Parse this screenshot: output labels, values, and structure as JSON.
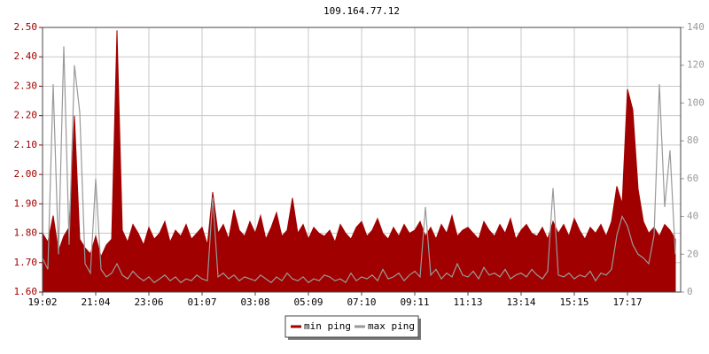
{
  "chart_data": {
    "type": "line",
    "title": "109.164.77.12",
    "categories": [
      "19:02",
      null,
      null,
      null,
      null,
      null,
      null,
      null,
      null,
      null,
      "21:04",
      null,
      null,
      null,
      null,
      null,
      null,
      null,
      null,
      null,
      "23:06",
      null,
      null,
      null,
      null,
      null,
      null,
      null,
      null,
      null,
      "01:07",
      null,
      null,
      null,
      null,
      null,
      null,
      null,
      null,
      null,
      "03:08",
      null,
      null,
      null,
      null,
      null,
      null,
      null,
      null,
      null,
      "05:09",
      null,
      null,
      null,
      null,
      null,
      null,
      null,
      null,
      null,
      "07:10",
      null,
      null,
      null,
      null,
      null,
      null,
      null,
      null,
      null,
      "09:11",
      null,
      null,
      null,
      null,
      null,
      null,
      null,
      null,
      null,
      "11:13",
      null,
      null,
      null,
      null,
      null,
      null,
      null,
      null,
      null,
      "13:14",
      null,
      null,
      null,
      null,
      null,
      null,
      null,
      null,
      null,
      "15:15",
      null,
      null,
      null,
      null,
      null,
      null,
      null,
      null,
      null,
      "17:17",
      null,
      null,
      null,
      null,
      null,
      null,
      null,
      null,
      null
    ],
    "series": [
      {
        "name": "min ping",
        "color": "#a00000",
        "fill": true,
        "values": [
          1.8,
          1.77,
          1.86,
          1.74,
          1.79,
          1.82,
          2.2,
          1.78,
          1.75,
          1.73,
          1.79,
          1.72,
          1.76,
          1.78,
          2.49,
          1.81,
          1.77,
          1.83,
          1.8,
          1.76,
          1.82,
          1.78,
          1.8,
          1.84,
          1.77,
          1.81,
          1.79,
          1.83,
          1.78,
          1.8,
          1.82,
          1.76,
          1.94,
          1.8,
          1.83,
          1.78,
          1.88,
          1.81,
          1.79,
          1.84,
          1.8,
          1.86,
          1.78,
          1.82,
          1.87,
          1.79,
          1.81,
          1.92,
          1.8,
          1.83,
          1.78,
          1.82,
          1.8,
          1.79,
          1.81,
          1.77,
          1.83,
          1.8,
          1.78,
          1.82,
          1.84,
          1.79,
          1.81,
          1.85,
          1.8,
          1.78,
          1.82,
          1.79,
          1.83,
          1.8,
          1.81,
          1.84,
          1.79,
          1.82,
          1.78,
          1.83,
          1.8,
          1.86,
          1.79,
          1.81,
          1.82,
          1.8,
          1.78,
          1.84,
          1.81,
          1.79,
          1.83,
          1.8,
          1.85,
          1.78,
          1.81,
          1.83,
          1.8,
          1.79,
          1.82,
          1.78,
          1.84,
          1.8,
          1.83,
          1.79,
          1.85,
          1.81,
          1.78,
          1.82,
          1.8,
          1.83,
          1.79,
          1.84,
          1.96,
          1.9,
          2.29,
          2.22,
          1.95,
          1.84,
          1.8,
          1.82,
          1.79,
          1.83,
          1.81,
          1.78
        ]
      },
      {
        "name": "max ping",
        "color": "#999999",
        "axis": "y2",
        "values": [
          18,
          12,
          110,
          20,
          130,
          25,
          120,
          95,
          15,
          10,
          60,
          12,
          8,
          10,
          15,
          9,
          7,
          11,
          8,
          6,
          8,
          5,
          7,
          9,
          6,
          8,
          5,
          7,
          6,
          9,
          7,
          6,
          50,
          8,
          10,
          7,
          9,
          6,
          8,
          7,
          6,
          9,
          7,
          5,
          8,
          6,
          10,
          7,
          6,
          8,
          5,
          7,
          6,
          9,
          8,
          6,
          7,
          5,
          10,
          6,
          8,
          7,
          9,
          6,
          12,
          7,
          8,
          10,
          6,
          9,
          11,
          8,
          45,
          9,
          12,
          7,
          10,
          8,
          15,
          9,
          8,
          11,
          7,
          13,
          9,
          10,
          8,
          12,
          7,
          9,
          10,
          8,
          12,
          9,
          7,
          11,
          55,
          9,
          8,
          10,
          7,
          9,
          8,
          11,
          6,
          10,
          9,
          12,
          30,
          40,
          35,
          25,
          20,
          18,
          15,
          30,
          110,
          45,
          75,
          20
        ]
      }
    ],
    "ylim": [
      1.6,
      2.5
    ],
    "yticks": [
      {
        "value": 1.6,
        "label": "1.60"
      },
      {
        "value": 1.7,
        "label": "1.70"
      },
      {
        "value": 1.8,
        "label": "1.80"
      },
      {
        "value": 1.9,
        "label": "1.90"
      },
      {
        "value": 2.0,
        "label": "2.00"
      },
      {
        "value": 2.1,
        "label": "2.10"
      },
      {
        "value": 2.2,
        "label": "2.20"
      },
      {
        "value": 2.3,
        "label": "2.30"
      },
      {
        "value": 2.4,
        "label": "2.40"
      },
      {
        "value": 2.5,
        "label": "2.50"
      }
    ],
    "y2lim": [
      0,
      140
    ],
    "y2ticks": [
      0,
      20,
      40,
      60,
      80,
      100,
      120,
      140
    ],
    "grid": true,
    "legend": "bottom"
  }
}
